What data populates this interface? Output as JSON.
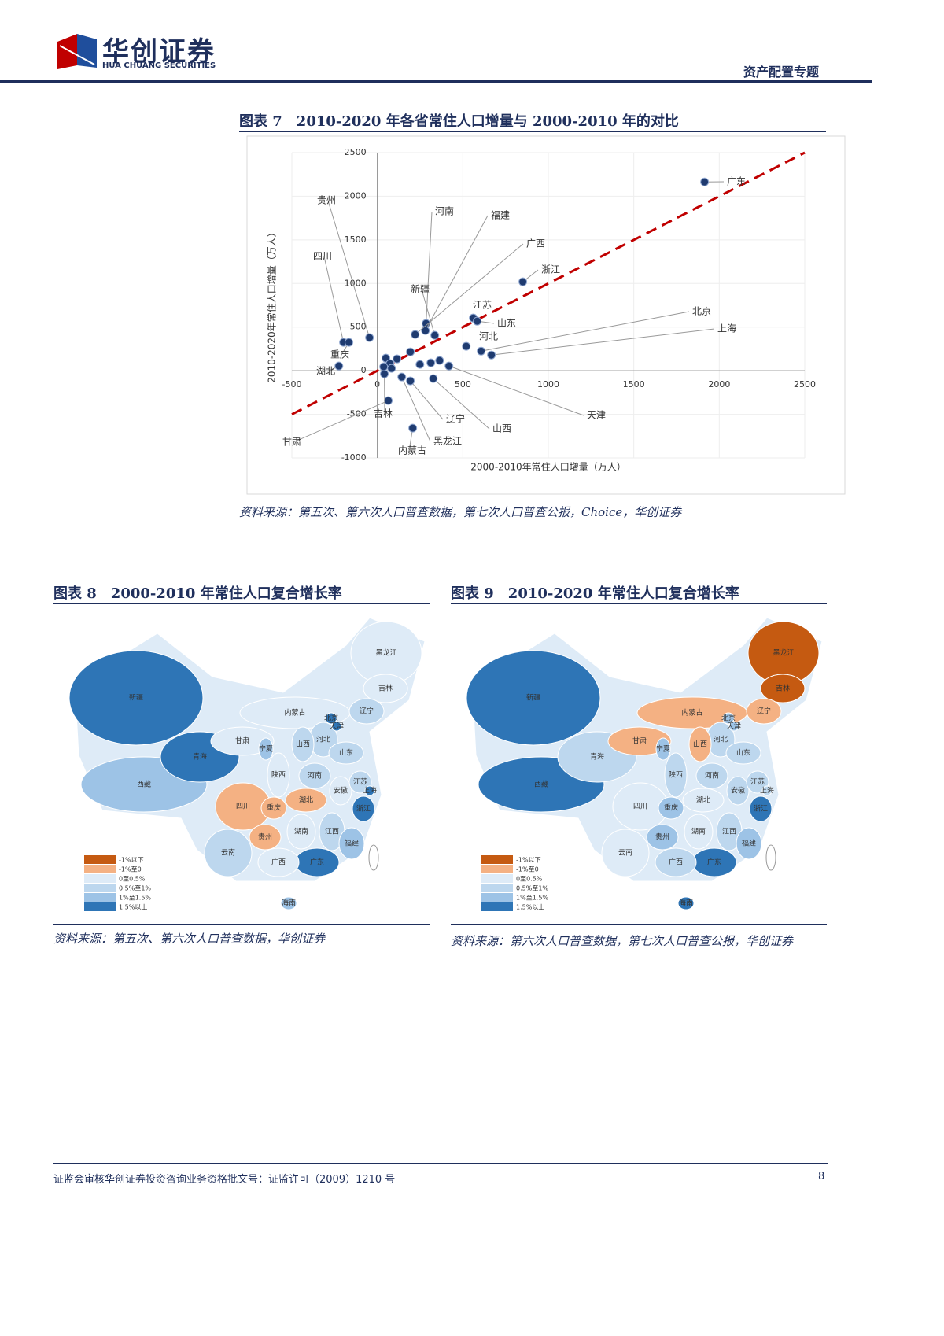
{
  "header": {
    "brand": "华创证券",
    "brand_en": "HUA CHUANG SECURITIES",
    "topic": "资产配置专题"
  },
  "chart_data": {
    "type": "scatter",
    "title": "图表 7　2010-2020 年各省常住人口增量与 2000-2010 年的对比",
    "x_label": "2000-2010年常住人口增量（万人）",
    "y_label": "2010-2020年常住人口增量（万人）",
    "labels": [
      "广东",
      "浙江",
      "江苏",
      "山东",
      "河北",
      "北京",
      "上海",
      "天津",
      "贵州",
      "四川",
      "重庆",
      "湖北",
      "河南",
      "福建",
      "广西",
      "新疆",
      "甘肃",
      "内蒙古",
      "黑龙江",
      "吉林",
      "辽宁",
      "山西",
      null,
      null,
      null,
      null,
      null,
      null,
      null,
      null,
      null
    ],
    "x": [
      1914,
      851,
      561,
      584,
      520,
      607,
      667,
      419,
      -46,
      -198,
      -166,
      -225,
      285,
      281,
      221,
      336,
      64,
      207,
      143,
      41,
      193,
      327,
      50,
      115,
      74,
      37,
      83,
      193,
      249,
      313,
      364
    ],
    "y": [
      2164,
      1019,
      604,
      568,
      280,
      225,
      180,
      54,
      379,
      325,
      325,
      54,
      541,
      460,
      415,
      406,
      -343,
      -658,
      -72,
      -36,
      -117,
      -90,
      144,
      135,
      81,
      45,
      27,
      216,
      72,
      90,
      117
    ],
    "color": "#1f3b70",
    "reference_line_color": "#c00000",
    "xlim": [
      -500,
      2500
    ],
    "ylim": [
      -1000,
      2500
    ],
    "xticks": [
      -500,
      0,
      500,
      1000,
      1500,
      2000,
      2500
    ],
    "yticks": [
      -1000,
      -500,
      0,
      500,
      1000,
      1500,
      2000,
      2500
    ],
    "grid": true
  },
  "figure7_source": "资料来源：第五次、第六次人口普查数据，第七次人口普查公报，Choice，华创证券",
  "province_names": [
    "新疆",
    "西藏",
    "青海",
    "甘肃",
    "内蒙古",
    "黑龙江",
    "吉林",
    "辽宁",
    "北京",
    "天津",
    "河北",
    "山西",
    "山东",
    "宁夏",
    "陕西",
    "河南",
    "江苏",
    "上海",
    "安徽",
    "湖北",
    "四川",
    "重庆",
    "贵州",
    "湖南",
    "江西",
    "浙江",
    "福建",
    "云南",
    "广西",
    "广东",
    "海南"
  ],
  "legend": [
    "-1%以下",
    "-1%至0",
    "0至0.5%",
    "0.5%至1%",
    "1%至1.5%",
    "1.5%以上"
  ],
  "legend_colors": [
    "#c55a11",
    "#f4b183",
    "#deebf7",
    "#bdd7ee",
    "#9dc3e6",
    "#2e75b6"
  ],
  "maps": [
    {
      "title": "图表 8　2000-2010 年常住人口复合增长率",
      "source": "资料来源：第五次、第六次人口普查数据，华创证券",
      "classes": [
        5,
        4,
        5,
        2,
        2,
        2,
        2,
        3,
        5,
        5,
        3,
        3,
        3,
        4,
        2,
        3,
        3,
        5,
        2,
        1,
        1,
        1,
        1,
        2,
        3,
        5,
        4,
        3,
        2,
        5,
        4
      ]
    },
    {
      "title": "图表 9　2010-2020 年常住人口复合增长率",
      "source": "资料来源：第六次人口普查数据，第七次人口普查公报，华创证券",
      "classes": [
        5,
        5,
        3,
        1,
        1,
        0,
        0,
        1,
        4,
        4,
        3,
        1,
        3,
        4,
        3,
        3,
        3,
        3,
        3,
        2,
        2,
        4,
        4,
        2,
        3,
        5,
        4,
        2,
        3,
        5,
        5
      ]
    }
  ],
  "footer": {
    "license": "证监会审核华创证券投资咨询业务资格批文号：证监许可（2009）1210 号",
    "page": "8"
  }
}
